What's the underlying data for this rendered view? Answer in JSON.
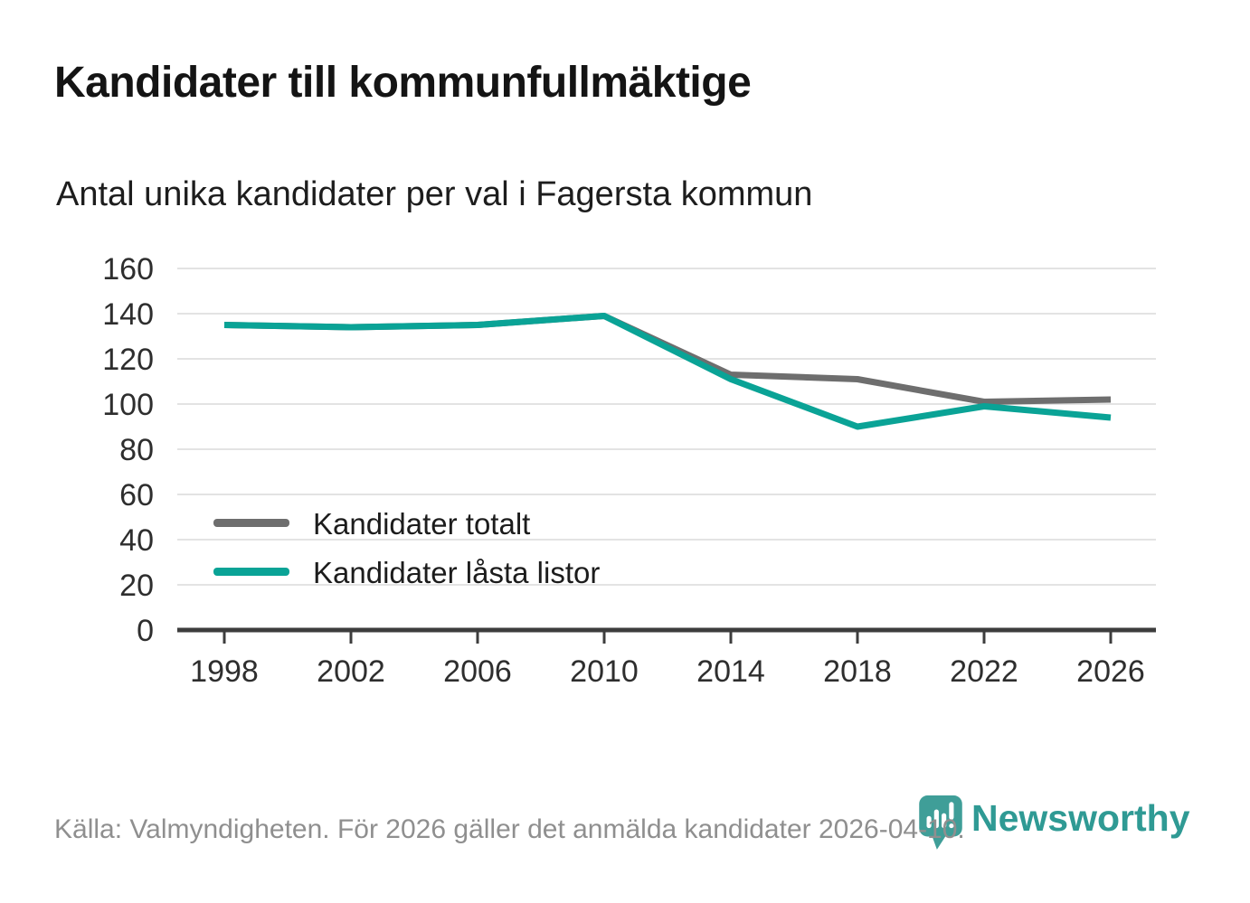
{
  "title": "Kandidater till kommunfullmäktige",
  "subtitle": "Antal unika kandidater per val i Fagersta kommun",
  "footer": {
    "source_text": "Källa: Valmyndigheten. För 2026 gäller det anmälda kandidater 2026-04-10."
  },
  "branding": {
    "logo_text": "Newsworthy",
    "logo_icon": "bar-chart-speech-bubble-icon",
    "logo_color": "#3f9e98",
    "logo_text_color": "#2f9a94"
  },
  "colors": {
    "background": "#ffffff",
    "gridline": "#e3e3e3",
    "axis": "#3d3d3d",
    "tick_label": "#2e2e2e",
    "series_total": "#6e6e6e",
    "series_locked": "#0aa396"
  },
  "chart_data": {
    "type": "line",
    "x": [
      1998,
      2002,
      2006,
      2010,
      2014,
      2018,
      2022,
      2026
    ],
    "series": [
      {
        "name": "Kandidater totalt",
        "color": "#6e6e6e",
        "values": [
          135,
          134,
          135,
          139,
          113,
          111,
          101,
          102
        ]
      },
      {
        "name": "Kandidater låsta listor",
        "color": "#0aa396",
        "values": [
          135,
          134,
          135,
          139,
          111,
          90,
          99,
          94
        ]
      }
    ],
    "ylabel": "",
    "xlabel": "",
    "ylim": [
      0,
      160
    ],
    "ytick_step": 20,
    "grid": "horizontal",
    "legend_position": "inside-bottom-left"
  }
}
